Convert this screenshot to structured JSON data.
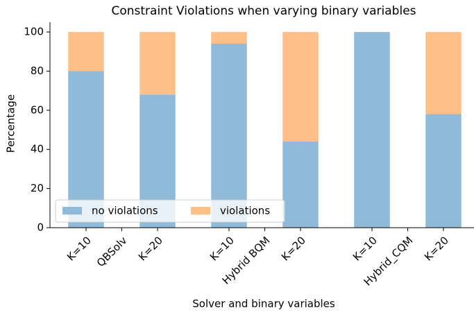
{
  "chart_data": {
    "type": "stacked_bar",
    "title": "Constraint Violations when varying binary variables",
    "x_label": "Solver and binary variables",
    "y_label": "Percentage",
    "categories": [
      "K=10",
      "QBSolv",
      "K=20",
      null,
      "K=10",
      "Hybrid BQM",
      "K=20",
      null,
      "K=10",
      "Hybrid_CQM",
      "K=20"
    ],
    "series": [
      {
        "name": "no violations",
        "color": "#8fbad9",
        "values": [
          80,
          null,
          68,
          null,
          94,
          null,
          44,
          null,
          100,
          null,
          58
        ]
      },
      {
        "name": "violations",
        "color": "#ffbf86",
        "values": [
          20,
          null,
          32,
          null,
          6,
          null,
          56,
          null,
          0,
          null,
          42
        ]
      }
    ],
    "ylim": [
      0,
      105
    ],
    "yticks": [
      0,
      20,
      40,
      60,
      80,
      100
    ],
    "legend": "lower left"
  }
}
